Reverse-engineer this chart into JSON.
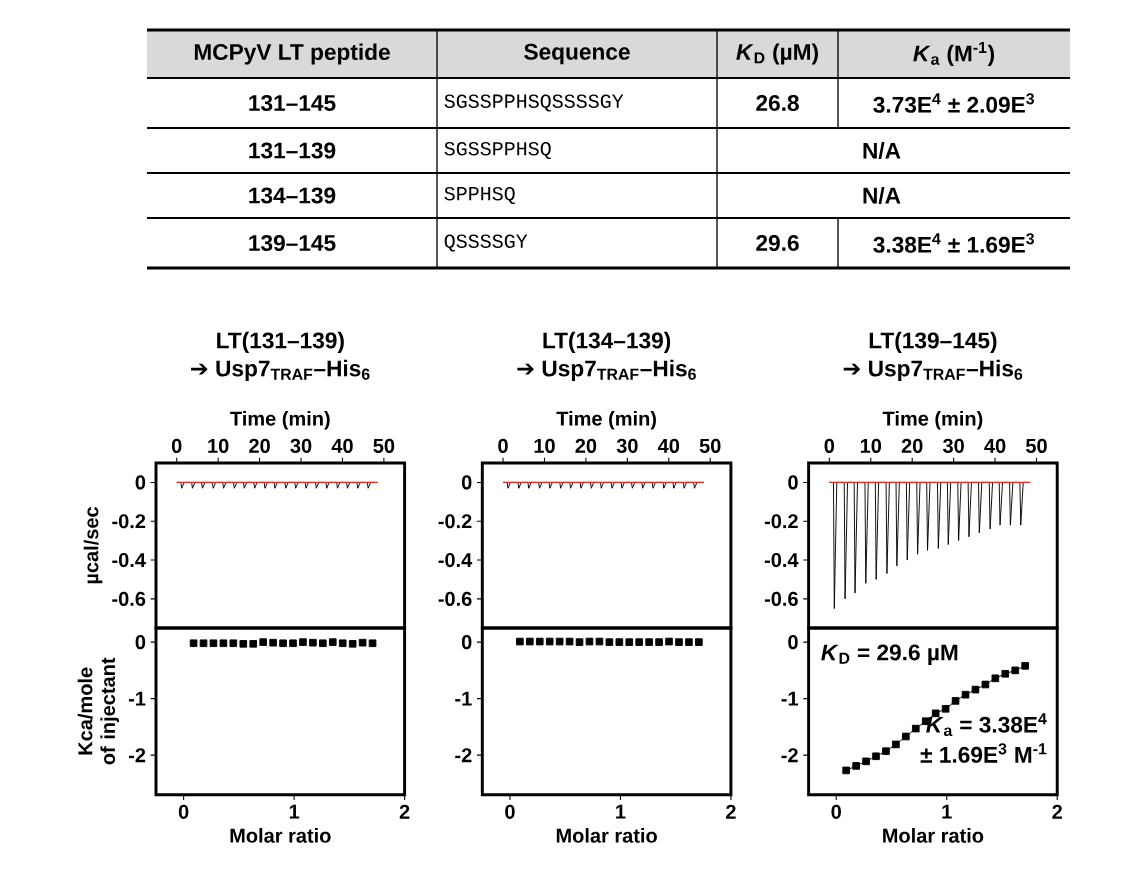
{
  "chart_data": [
    {
      "type": "other",
      "categories": [
        "MCPyV LT peptide",
        "Sequence",
        "*K*$_{D}$ (µM)",
        "*K*$_{a}$ (M$^{-1}$)"
      ],
      "y_categories": [
        "131–145",
        "131–139",
        "134–139",
        "139–145"
      ],
      "cell_labels": [
        [
          "SGSSPPHSQSSSSGY",
          "26.8",
          "3.73E$^{4}$ ± 2.09E$^{3}$"
        ],
        [
          "SGSSPPHSQ",
          null,
          "N/A"
        ],
        [
          "SPPHSQ",
          null,
          "N/A"
        ],
        [
          "QSSSSGY",
          "29.6",
          "3.38E$^{4}$ ± 1.69E$^{3}$"
        ]
      ]
    },
    {
      "type": "line",
      "title": "LT(131–139)",
      "subtitle": "➔ Usp7$_{TRAF}$–His$_{6}$",
      "xlabel": "Time (min)",
      "ylabel": "µcal/sec",
      "xlim": [
        -5,
        55
      ],
      "ylim": [
        -0.75,
        0.1
      ],
      "xticks": [
        0,
        10,
        20,
        30,
        40,
        50
      ],
      "yticks": [
        0,
        -0.2,
        -0.4,
        -0.6
      ],
      "series": [
        {
          "color": "#000000",
          "x": [
            0,
            1.0,
            1.2,
            1.8,
            3.6,
            3.8,
            4.4,
            6.0,
            6.2,
            6.8,
            8.6,
            8.8,
            9.4,
            11.1,
            11.3,
            11.9,
            13.7,
            13.9,
            14.5,
            16.1,
            16.3,
            16.9,
            18.6,
            18.8,
            19.4,
            21.1,
            21.3,
            21.9,
            23.5,
            23.7,
            24.3,
            26.1,
            26.3,
            26.9,
            28.5,
            28.7,
            29.3,
            31.0,
            31.2,
            31.8,
            33.5,
            33.7,
            34.3,
            36.0,
            36.2,
            36.8,
            38.6,
            38.8,
            39.4,
            41.0,
            41.2,
            41.8,
            43.5,
            43.7,
            44.3,
            46.0,
            46.2,
            46.8,
            48.5
          ],
          "values": [
            0,
            0,
            -0.03,
            0,
            0,
            -0.03,
            0,
            0,
            -0.03,
            0,
            0,
            -0.03,
            0,
            0,
            -0.03,
            0,
            0,
            -0.03,
            0,
            0,
            -0.03,
            0,
            0,
            -0.03,
            0,
            0,
            -0.03,
            0,
            0,
            -0.03,
            0,
            0,
            -0.03,
            0,
            0,
            -0.03,
            0,
            0,
            -0.03,
            0,
            0,
            -0.03,
            0,
            0,
            -0.03,
            0,
            0,
            -0.03,
            0,
            0,
            -0.03,
            0,
            0,
            -0.03,
            0,
            0,
            -0.03,
            0,
            0
          ]
        },
        {
          "color": "#e0302a",
          "x": [
            0,
            48.5
          ],
          "values": [
            0,
            0
          ]
        }
      ]
    },
    {
      "type": "line",
      "title": "LT(134–139)",
      "subtitle": "➔ Usp7$_{TRAF}$–His$_{6}$",
      "xlabel": "Time (min)",
      "xlim": [
        -5,
        55
      ],
      "ylim": [
        -0.75,
        0.1
      ],
      "xticks": [
        0,
        10,
        20,
        30,
        40,
        50
      ],
      "yticks": [
        0,
        -0.2,
        -0.4,
        -0.6
      ],
      "series": [
        {
          "color": "#000000",
          "x": [
            0,
            1.0,
            1.2,
            1.8,
            3.6,
            3.8,
            4.4,
            6.0,
            6.2,
            6.8,
            8.6,
            8.8,
            9.4,
            11.1,
            11.3,
            11.9,
            13.7,
            13.9,
            14.5,
            16.1,
            16.3,
            16.9,
            18.6,
            18.8,
            19.4,
            21.1,
            21.3,
            21.9,
            23.5,
            23.7,
            24.3,
            26.1,
            26.3,
            26.9,
            28.5,
            28.7,
            29.3,
            31.0,
            31.2,
            31.8,
            33.5,
            33.7,
            34.3,
            36.0,
            36.2,
            36.8,
            38.6,
            38.8,
            39.4,
            41.0,
            41.2,
            41.8,
            43.5,
            43.7,
            44.3,
            46.0,
            46.2,
            46.8,
            48.5
          ],
          "values": [
            0,
            0,
            -0.03,
            0,
            0,
            -0.03,
            0,
            0,
            -0.03,
            0,
            0,
            -0.03,
            0,
            0,
            -0.03,
            0,
            0,
            -0.03,
            0,
            0,
            -0.03,
            0,
            0,
            -0.03,
            0,
            0,
            -0.03,
            0,
            0,
            -0.03,
            0,
            0,
            -0.03,
            0,
            0,
            -0.03,
            0,
            0,
            -0.03,
            0,
            0,
            -0.03,
            0,
            0,
            -0.03,
            0,
            0,
            -0.03,
            0,
            0,
            -0.03,
            0,
            0,
            -0.03,
            0,
            0,
            -0.03,
            0,
            0
          ]
        },
        {
          "color": "#e0302a",
          "x": [
            0,
            48.5
          ],
          "values": [
            0,
            0
          ]
        }
      ]
    },
    {
      "type": "line",
      "title": "LT(139–145)",
      "subtitle": "➔ Usp7$_{TRAF}$–His$_{6}$",
      "xlabel": "Time (min)",
      "xlim": [
        -5,
        55
      ],
      "ylim": [
        -0.75,
        0.1
      ],
      "xticks": [
        0,
        10,
        20,
        30,
        40,
        50
      ],
      "yticks": [
        0,
        -0.2,
        -0.4,
        -0.6
      ],
      "series": [
        {
          "color": "#000000",
          "x": [
            0,
            1.0,
            1.2,
            1.8,
            3.6,
            3.8,
            4.4,
            6.0,
            6.2,
            6.8,
            8.6,
            8.8,
            9.4,
            11.1,
            11.3,
            11.9,
            13.7,
            13.9,
            14.5,
            16.1,
            16.3,
            16.9,
            18.6,
            18.8,
            19.4,
            21.1,
            21.3,
            21.9,
            23.5,
            23.7,
            24.3,
            26.1,
            26.3,
            26.9,
            28.5,
            28.7,
            29.3,
            31.0,
            31.2,
            31.8,
            33.5,
            33.7,
            34.3,
            36.0,
            36.2,
            36.8,
            38.6,
            38.8,
            39.4,
            41.0,
            41.2,
            41.8,
            43.5,
            43.7,
            44.3,
            46.0,
            46.2,
            46.8,
            48.5
          ],
          "values": [
            0,
            0,
            -0.65,
            0,
            0,
            -0.6,
            0,
            0,
            -0.57,
            0,
            0,
            -0.52,
            0,
            0,
            -0.5,
            0,
            0,
            -0.47,
            0,
            0,
            -0.43,
            0,
            0,
            -0.4,
            0,
            0,
            -0.37,
            0,
            0,
            -0.35,
            0,
            0,
            -0.34,
            0,
            0,
            -0.32,
            0,
            0,
            -0.3,
            0,
            0,
            -0.28,
            0,
            0,
            -0.26,
            0,
            0,
            -0.24,
            0,
            0,
            -0.22,
            0,
            0,
            -0.22,
            0,
            0,
            -0.22,
            0,
            0
          ]
        },
        {
          "color": "#e0302a",
          "x": [
            0,
            48.5
          ],
          "values": [
            0,
            0
          ]
        }
      ]
    },
    {
      "type": "scatter",
      "xlabel": "Molar ratio",
      "ylabel": "Kca/mole of injectant",
      "xlim": [
        -0.25,
        2
      ],
      "ylim": [
        -2.7,
        0.25
      ],
      "xticks": [
        0,
        1,
        2
      ],
      "yticks": [
        0,
        -1,
        -2
      ],
      "marker": "square",
      "x": [
        0.09,
        0.18,
        0.27,
        0.36,
        0.45,
        0.54,
        0.63,
        0.72,
        0.81,
        0.9,
        0.99,
        1.08,
        1.17,
        1.26,
        1.35,
        1.44,
        1.53,
        1.62,
        1.71
      ],
      "series": [
        {
          "color": "#000000",
          "values": [
            -0.02,
            -0.02,
            -0.02,
            -0.02,
            -0.02,
            -0.03,
            -0.03,
            0,
            -0.01,
            -0.02,
            -0.02,
            0,
            -0.01,
            -0.02,
            0,
            -0.02,
            -0.03,
            -0.01,
            -0.02
          ]
        }
      ]
    },
    {
      "type": "scatter",
      "xlabel": "Molar ratio",
      "xlim": [
        -0.25,
        2
      ],
      "ylim": [
        -2.7,
        0.25
      ],
      "xticks": [
        0,
        1,
        2
      ],
      "yticks": [
        0,
        -1,
        -2
      ],
      "marker": "square",
      "x": [
        0.09,
        0.18,
        0.27,
        0.36,
        0.45,
        0.54,
        0.63,
        0.72,
        0.81,
        0.9,
        0.99,
        1.08,
        1.17,
        1.26,
        1.35,
        1.44,
        1.53,
        1.62,
        1.71
      ],
      "series": [
        {
          "color": "#000000",
          "values": [
            0.01,
            0.01,
            0.01,
            0.01,
            0.01,
            0.01,
            0,
            0.01,
            0.01,
            0,
            0,
            0,
            0,
            0,
            0,
            0.01,
            0,
            0,
            0
          ]
        }
      ]
    },
    {
      "type": "line",
      "xlabel": "Molar ratio",
      "xlim": [
        -0.25,
        2
      ],
      "ylim": [
        -2.7,
        0.25
      ],
      "xticks": [
        0,
        1,
        2
      ],
      "yticks": [
        0,
        -1,
        -2
      ],
      "marker": "square",
      "x": [
        0.09,
        0.18,
        0.27,
        0.36,
        0.45,
        0.54,
        0.63,
        0.72,
        0.81,
        0.9,
        0.99,
        1.08,
        1.17,
        1.26,
        1.35,
        1.44,
        1.53,
        1.62,
        1.71
      ],
      "series": [
        {
          "color": "#000000",
          "values": [
            -2.27,
            -2.19,
            -2.11,
            -2.02,
            -1.93,
            -1.81,
            -1.67,
            -1.53,
            -1.4,
            -1.26,
            -1.18,
            -1.04,
            -0.93,
            -0.84,
            -0.75,
            -0.64,
            -0.56,
            -0.5,
            -0.42
          ]
        }
      ],
      "annotations": [
        "*K*$_{D}$ = 29.6 µM",
        "*K*$_{a}$ = 3.38E$^{4}$",
        "± 1.69E$^{3}$ M$^{-1}$"
      ]
    }
  ]
}
